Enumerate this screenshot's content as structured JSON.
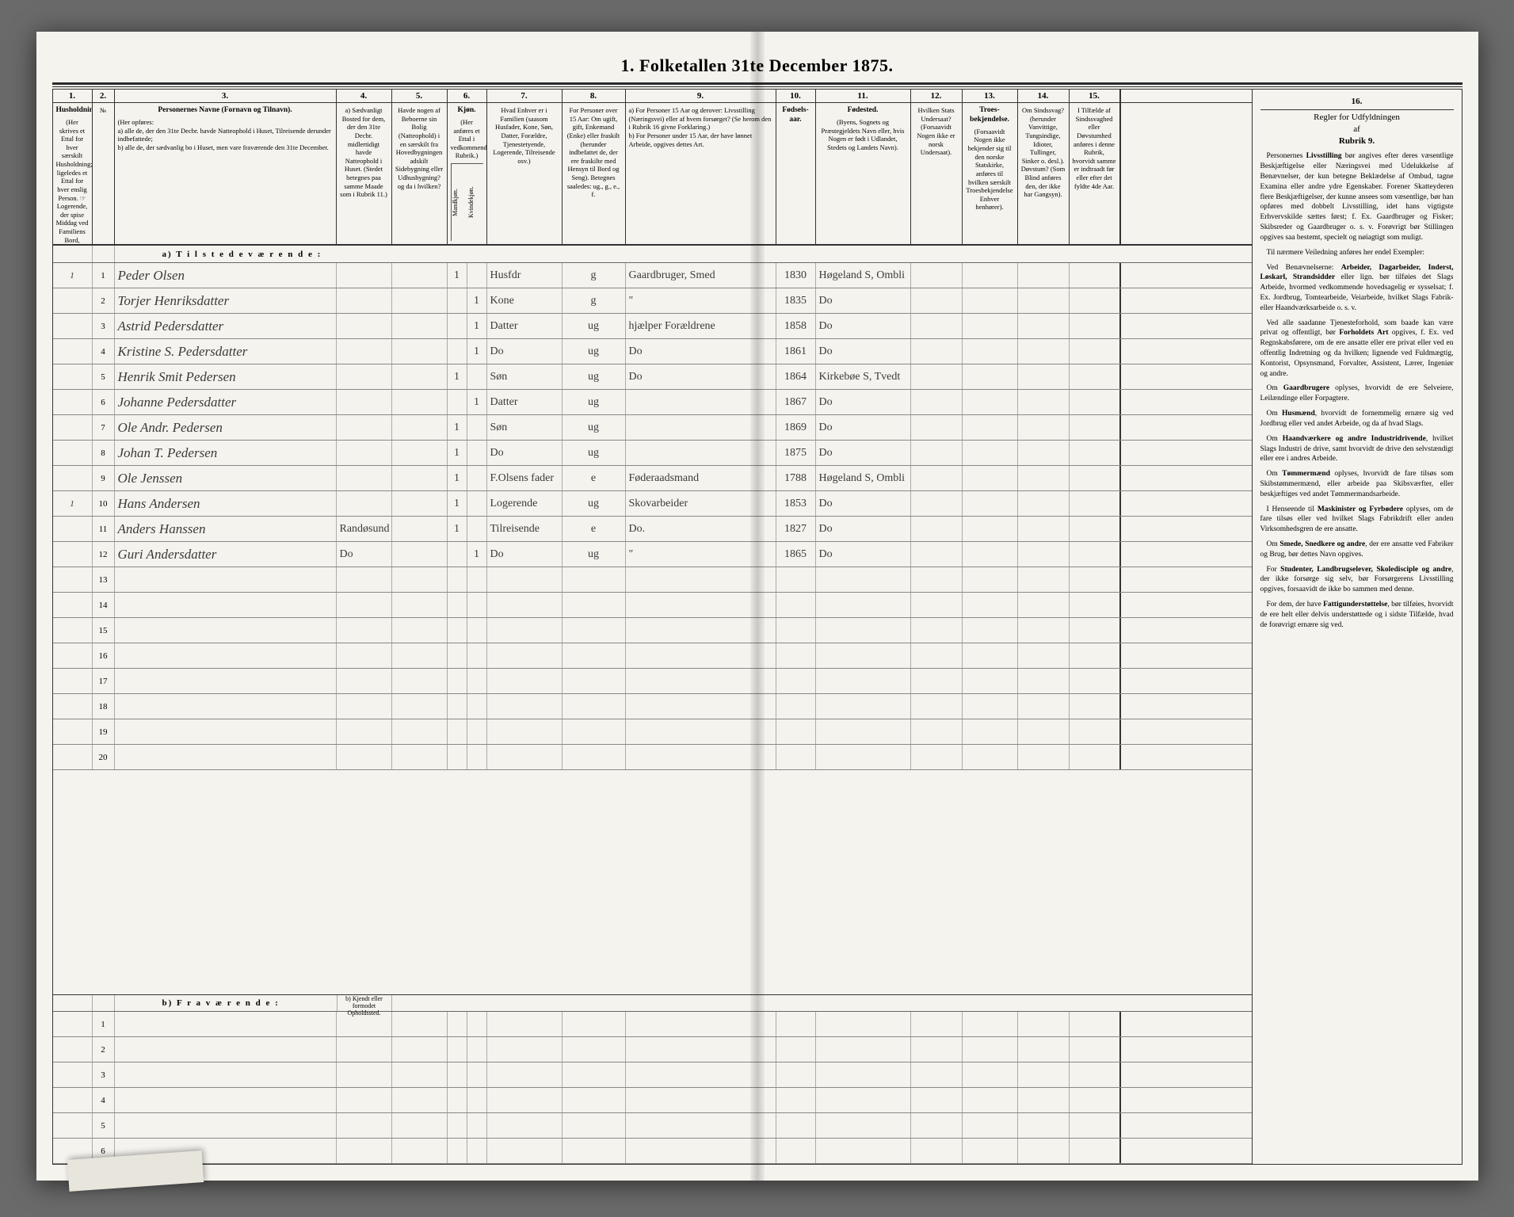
{
  "title": "1.  Folketallen 31te December 1875.",
  "colnums": [
    "1.",
    "2.",
    "3.",
    "4.",
    "5.",
    "6.",
    "7.",
    "8.",
    "9.",
    "10.",
    "11.",
    "12.",
    "13.",
    "14.",
    "15.",
    "16."
  ],
  "headers": {
    "c1": {
      "title": "Husholdninger.",
      "body": "(Her skrives et Ettal for hver særskilt Husholdning; ligeledes et Ettal for hver enslig Person. ☞ Logerende, der spise Middag ved Familiens Bord, regnes ikke som enslige)."
    },
    "c2": {
      "title": "№",
      "body": ""
    },
    "c3": {
      "title": "Personernes Navne (Fornavn og Tilnavn).",
      "body": "(Her opføres:\na) alle de, der den 31te Decbr. havde Natteophold i Huset, Tilreisende derunder indbefattede;\nb) alle de, der sædvanlig bo i Huset, men vare fraværende den 31te December."
    },
    "c4": {
      "title": "",
      "body": "a) Sædvanligt Bosted for dem, der den 31te Decbr. midlertidigt havde Natteophold i Huset. (Stedet betegnes paa samme Maade som i Rubrik 11.)"
    },
    "c5": {
      "title": "",
      "body": "Havde nogen af Beboerne sin Bolig (Natteophold) i en særskilt fra Hovedbygningen adskilt Sidebygning eller Udhusbygning? og da i hvilken?"
    },
    "c6": {
      "title": "Kjøn.",
      "body": "(Her anføres et Ettal i vedkommende Rubrik.)",
      "sub_a": "Mandkjøn.",
      "sub_b": "Kvindekjøn."
    },
    "c7": {
      "title": "",
      "body": "Hvad Enhver er i Familien (saasom Husfader, Kone, Søn, Datter, Forældre, Tjenestetyende, Logerende, Tilreisende osv.)"
    },
    "c8": {
      "title": "",
      "body": "For Personer over 15 Aar: Om ugift, gift, Enkemand (Enke) eller fraskilt (herunder indbefattet de, der ere fraskilte med Hensyn til Bord og Seng). Betegnes saaledes: ug., g., e., f."
    },
    "c9": {
      "title": "",
      "body": "a) For Personer 15 Aar og derover: Livsstilling (Næringsvei) eller af hvem forsørget? (Se herom den i Rubrik 16 givne Forklaring.)\nb) For Personer under 15 Aar, der have lønnet Arbeide, opgives dettes Art."
    },
    "c10": {
      "title": "Fødsels-aar.",
      "body": ""
    },
    "c11": {
      "title": "Fødested.",
      "body": "(Byens, Sognets og Præstegjeldets Navn eller, hvis Nogen er født i Udlandet, Stedets og Landets Navn)."
    },
    "c12": {
      "title": "",
      "body": "Hvilken Stats Undersaat? (Forsaavidt Nogen ikke er norsk Undersaat)."
    },
    "c13": {
      "title": "Troes-bekjendelse.",
      "body": "(Forsaavidt Nogen ikke bekjender sig til den norske Statskirke, anføres til hvilken særskilt Troesbekjendelse Enhver henhører)."
    },
    "c14": {
      "title": "",
      "body": "Om Sindssvag? (herunder Vanvittige, Tungsindige, Idioter, Tullinger, Sinker o. desl.). Døvstum? (Som Blind anføres den, der ikke har Gangsyn)."
    },
    "c15": {
      "title": "",
      "body": "I Tilfælde af Sindssvaghed eller Døvstumhed anføres i denne Rubrik, hvorvidt samme er indtraadt før eller efter det fyldte 4de Aar."
    },
    "c16": {
      "title": "",
      "body": "Regler for Udfyldningen af Rubrik 9."
    }
  },
  "section_a": "a)  T i l s t e d e v æ r e n d e :",
  "section_b": "b)  F r a v æ r e n d e :",
  "section_b_col4": "b) Kjendt eller formodet Opholdssted.",
  "rows_a": [
    {
      "n": "1",
      "hh": "1",
      "name": "Peder Olsen",
      "c4": "",
      "c5": "",
      "m": "1",
      "k": "",
      "rel": "Husfdr",
      "civ": "g",
      "occ": "Gaardbruger, Smed",
      "yr": "1830",
      "bp": "Høgeland S, Ombli",
      "c12": "",
      "c13": "",
      "c14": "",
      "c15": ""
    },
    {
      "n": "2",
      "hh": "",
      "name": "Torjer Henriksdatter",
      "c4": "",
      "c5": "",
      "m": "",
      "k": "1",
      "rel": "Kone",
      "civ": "g",
      "occ": "\"",
      "yr": "1835",
      "bp": "Do",
      "c12": "",
      "c13": "",
      "c14": "",
      "c15": ""
    },
    {
      "n": "3",
      "hh": "",
      "name": "Astrid Pedersdatter",
      "c4": "",
      "c5": "",
      "m": "",
      "k": "1",
      "rel": "Datter",
      "civ": "ug",
      "occ": "hjælper Forældrene",
      "yr": "1858",
      "bp": "Do",
      "c12": "",
      "c13": "",
      "c14": "",
      "c15": ""
    },
    {
      "n": "4",
      "hh": "",
      "name": "Kristine S. Pedersdatter",
      "c4": "",
      "c5": "",
      "m": "",
      "k": "1",
      "rel": "Do",
      "civ": "ug",
      "occ": "Do",
      "yr": "1861",
      "bp": "Do",
      "c12": "",
      "c13": "",
      "c14": "",
      "c15": ""
    },
    {
      "n": "5",
      "hh": "",
      "name": "Henrik Smit Pedersen",
      "c4": "",
      "c5": "",
      "m": "1",
      "k": "",
      "rel": "Søn",
      "civ": "ug",
      "occ": "Do",
      "yr": "1864",
      "bp": "Kirkebøe S, Tvedt",
      "c12": "",
      "c13": "",
      "c14": "",
      "c15": ""
    },
    {
      "n": "6",
      "hh": "",
      "name": "Johanne Pedersdatter",
      "c4": "",
      "c5": "",
      "m": "",
      "k": "1",
      "rel": "Datter",
      "civ": "ug",
      "occ": "",
      "yr": "1867",
      "bp": "Do",
      "c12": "",
      "c13": "",
      "c14": "",
      "c15": ""
    },
    {
      "n": "7",
      "hh": "",
      "name": "Ole Andr. Pedersen",
      "c4": "",
      "c5": "",
      "m": "1",
      "k": "",
      "rel": "Søn",
      "civ": "ug",
      "occ": "",
      "yr": "1869",
      "bp": "Do",
      "c12": "",
      "c13": "",
      "c14": "",
      "c15": ""
    },
    {
      "n": "8",
      "hh": "",
      "name": "Johan T. Pedersen",
      "c4": "",
      "c5": "",
      "m": "1",
      "k": "",
      "rel": "Do",
      "civ": "ug",
      "occ": "",
      "yr": "1875",
      "bp": "Do",
      "c12": "",
      "c13": "",
      "c14": "",
      "c15": ""
    },
    {
      "n": "9",
      "hh": "",
      "name": "Ole Jenssen",
      "c4": "",
      "c5": "",
      "m": "1",
      "k": "",
      "rel": "F.Olsens fader",
      "civ": "e",
      "occ": "Føderaadsmand",
      "yr": "1788",
      "bp": "Høgeland S, Ombli",
      "c12": "",
      "c13": "",
      "c14": "",
      "c15": ""
    },
    {
      "n": "10",
      "hh": "1",
      "name": "Hans Andersen",
      "c4": "",
      "c5": "",
      "m": "1",
      "k": "",
      "rel": "Logerende",
      "civ": "ug",
      "occ": "Skovarbeider",
      "yr": "1853",
      "bp": "Do",
      "c12": "",
      "c13": "",
      "c14": "",
      "c15": ""
    },
    {
      "n": "11",
      "hh": "",
      "name": "Anders Hanssen",
      "c4": "Randøsund",
      "c5": "",
      "m": "1",
      "k": "",
      "rel": "Tilreisende",
      "civ": "e",
      "occ": "Do.",
      "yr": "1827",
      "bp": "Do",
      "c12": "",
      "c13": "",
      "c14": "",
      "c15": ""
    },
    {
      "n": "12",
      "hh": "",
      "name": "Guri Andersdatter",
      "c4": "Do",
      "c5": "",
      "m": "",
      "k": "1",
      "rel": "Do",
      "civ": "ug",
      "occ": "\"",
      "yr": "1865",
      "bp": "Do",
      "c12": "",
      "c13": "",
      "c14": "",
      "c15": ""
    },
    {
      "n": "13",
      "hh": "",
      "name": "",
      "c4": "",
      "c5": "",
      "m": "",
      "k": "",
      "rel": "",
      "civ": "",
      "occ": "",
      "yr": "",
      "bp": "",
      "c12": "",
      "c13": "",
      "c14": "",
      "c15": ""
    },
    {
      "n": "14",
      "hh": "",
      "name": "",
      "c4": "",
      "c5": "",
      "m": "",
      "k": "",
      "rel": "",
      "civ": "",
      "occ": "",
      "yr": "",
      "bp": "",
      "c12": "",
      "c13": "",
      "c14": "",
      "c15": ""
    },
    {
      "n": "15",
      "hh": "",
      "name": "",
      "c4": "",
      "c5": "",
      "m": "",
      "k": "",
      "rel": "",
      "civ": "",
      "occ": "",
      "yr": "",
      "bp": "",
      "c12": "",
      "c13": "",
      "c14": "",
      "c15": ""
    },
    {
      "n": "16",
      "hh": "",
      "name": "",
      "c4": "",
      "c5": "",
      "m": "",
      "k": "",
      "rel": "",
      "civ": "",
      "occ": "",
      "yr": "",
      "bp": "",
      "c12": "",
      "c13": "",
      "c14": "",
      "c15": ""
    },
    {
      "n": "17",
      "hh": "",
      "name": "",
      "c4": "",
      "c5": "",
      "m": "",
      "k": "",
      "rel": "",
      "civ": "",
      "occ": "",
      "yr": "",
      "bp": "",
      "c12": "",
      "c13": "",
      "c14": "",
      "c15": ""
    },
    {
      "n": "18",
      "hh": "",
      "name": "",
      "c4": "",
      "c5": "",
      "m": "",
      "k": "",
      "rel": "",
      "civ": "",
      "occ": "",
      "yr": "",
      "bp": "",
      "c12": "",
      "c13": "",
      "c14": "",
      "c15": ""
    },
    {
      "n": "19",
      "hh": "",
      "name": "",
      "c4": "",
      "c5": "",
      "m": "",
      "k": "",
      "rel": "",
      "civ": "",
      "occ": "",
      "yr": "",
      "bp": "",
      "c12": "",
      "c13": "",
      "c14": "",
      "c15": ""
    },
    {
      "n": "20",
      "hh": "",
      "name": "",
      "c4": "",
      "c5": "",
      "m": "",
      "k": "",
      "rel": "",
      "civ": "",
      "occ": "",
      "yr": "",
      "bp": "",
      "c12": "",
      "c13": "",
      "c14": "",
      "c15": ""
    }
  ],
  "rows_b": [
    {
      "n": "1"
    },
    {
      "n": "2"
    },
    {
      "n": "3"
    },
    {
      "n": "4"
    },
    {
      "n": "5"
    },
    {
      "n": "6"
    }
  ],
  "sidebar": {
    "head1": "Regler for Udfyldningen",
    "head2": "af",
    "head3": "Rubrik 9.",
    "paras": [
      "Personernes <b>Livsstilling</b> bør angives efter deres væsentlige Beskjæftigelse eller Næringsvei med Udelukkelse af Benævnelser, der kun betegne Beklædelse af Ombud, tagne Examina eller andre ydre Egenskaber. Forener Skatteyderen flere Beskjæftigelser, der kunne ansees som væsentlige, bør han opføres med dobbelt Livsstilling, idet hans vigtigste Erhvervskilde sættes først; f. Ex. Gaardbruger og Fisker; Skibsreder og Gaardbruger o. s. v. Forøvrigt bør Stillingen opgives saa bestemt, specielt og nøiagtigt som muligt.",
      "Til nærmere Veiledning anføres her endel Exempler:",
      "Ved Benævnelserne: <b>Arbeider, Dagarbeider, Inderst, Løskarl, Strandsidder</b> eller lign. bør tilføies det Slags Arbeide, hvormed vedkommende hovedsagelig er sysselsat; f. Ex. Jordbrug, Tomtearbeide, Veiarbeide, hvilket Slags Fabrik- eller Haandværksarbeide o. s. v.",
      "Ved alle saadanne Tjenesteforhold, som baade kan være privat og offentligt, bør <b>Forholdets Art</b> opgives, f. Ex. ved Regnskabsførere, om de ere ansatte eller ere privat eller ved en offentlig Indretning og da hvilken; lignende ved Fuldmægtig, Kontorist, Opsynsmand, Forvalter, Assistent, Lærer, Ingeniør og andre.",
      "Om <b>Gaardbrugere</b> oplyses, hvorvidt de ere Selveiere, Leilændinge eller Forpagtere.",
      "Om <b>Husmænd</b>, hvorvidt de fornemmelig ernære sig ved Jordbrug eller ved andet Arbeide, og da af hvad Slags.",
      "Om <b>Haandværkere og andre Industridrivende</b>, hvilket Slags Industri de drive, samt hvorvidt de drive den selvstændigt eller ere i andres Arbeide.",
      "Om <b>Tømmermænd</b> oplyses, hvorvidt de fare tilsøs som Skibstømmermænd, eller arbeide paa Skibsværfter, eller beskjæftiges ved andet Tømmermandsarbeide.",
      "I Henseende til <b>Maskinister og Fyrbødere</b> oplyses, om de fare tilsøs eller ved hvilket Slags Fabrikdrift eller anden Virksomhedsgren de ere ansatte.",
      "Om <b>Smede, Snedkere og andre</b>, der ere ansatte ved Fabriker og Brug, bør dettes Navn opgives.",
      "For <b>Studenter, Landbrugselever, Skoledisciple og andre</b>, der ikke forsørge sig selv, bør Forsørgerens Livsstilling opgives, forsaavidt de ikke bo sammen med denne.",
      "For dem, der have <b>Fattigunderstøttelse</b>, bør tilføies, hvorvidt de ere helt eller delvis understøttede og i sidste Tilfælde, hvad de forøvrigt ernære sig ved."
    ]
  }
}
